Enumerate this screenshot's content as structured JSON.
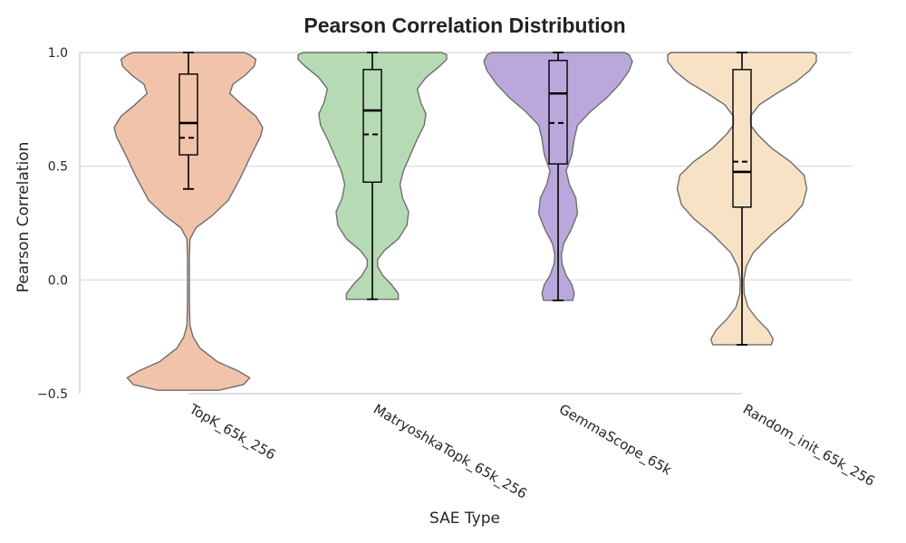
{
  "chart_data": {
    "type": "violin",
    "title": "Pearson Correlation Distribution",
    "xlabel": "SAE Type",
    "ylabel": "Pearson Correlation",
    "ylim": [
      -0.5,
      1.0
    ],
    "yticks": [
      {
        "value": -0.5,
        "label": "−0.5"
      },
      {
        "value": 0.0,
        "label": "0.0"
      },
      {
        "value": 0.5,
        "label": "0.5"
      },
      {
        "value": 1.0,
        "label": "1.0"
      }
    ],
    "grid": true,
    "categories": [
      "TopK_65k_256",
      "MatryoshkaTopk_65k_256",
      "GemmaScope_65k",
      "Random_init_65k_256"
    ],
    "series": [
      {
        "name": "TopK_65k_256",
        "color": "#f2c3ab",
        "box": {
          "whisker_low": 0.4,
          "q1": 0.55,
          "median": 0.69,
          "mean": 0.625,
          "q3": 0.905,
          "whisker_high": 1.0
        },
        "range": [
          -0.485,
          1.0
        ],
        "density": [
          [
            -0.485,
            0.4
          ],
          [
            -0.46,
            0.72
          ],
          [
            -0.43,
            0.8
          ],
          [
            -0.4,
            0.65
          ],
          [
            -0.36,
            0.38
          ],
          [
            -0.3,
            0.15
          ],
          [
            -0.25,
            0.06
          ],
          [
            -0.2,
            0.02
          ],
          [
            -0.1,
            0.012
          ],
          [
            0.0,
            0.012
          ],
          [
            0.1,
            0.012
          ],
          [
            0.18,
            0.02
          ],
          [
            0.23,
            0.1
          ],
          [
            0.28,
            0.3
          ],
          [
            0.35,
            0.52
          ],
          [
            0.45,
            0.68
          ],
          [
            0.55,
            0.82
          ],
          [
            0.63,
            0.94
          ],
          [
            0.67,
            0.97
          ],
          [
            0.72,
            0.88
          ],
          [
            0.77,
            0.7
          ],
          [
            0.82,
            0.54
          ],
          [
            0.86,
            0.58
          ],
          [
            0.9,
            0.74
          ],
          [
            0.94,
            0.86
          ],
          [
            0.97,
            0.88
          ],
          [
            0.99,
            0.8
          ],
          [
            1.0,
            0.72
          ]
        ]
      },
      {
        "name": "MatryoshkaTopk_65k_256",
        "color": "#b6dbb4",
        "box": {
          "whisker_low": -0.085,
          "q1": 0.43,
          "median": 0.745,
          "mean": 0.64,
          "q3": 0.925,
          "whisker_high": 1.0
        },
        "range": [
          -0.085,
          1.0
        ],
        "density": [
          [
            -0.085,
            0.3
          ],
          [
            -0.06,
            0.3
          ],
          [
            -0.02,
            0.22
          ],
          [
            0.02,
            0.12
          ],
          [
            0.06,
            0.06
          ],
          [
            0.09,
            0.06
          ],
          [
            0.13,
            0.14
          ],
          [
            0.18,
            0.3
          ],
          [
            0.24,
            0.4
          ],
          [
            0.3,
            0.42
          ],
          [
            0.36,
            0.35
          ],
          [
            0.42,
            0.32
          ],
          [
            0.48,
            0.36
          ],
          [
            0.55,
            0.44
          ],
          [
            0.62,
            0.52
          ],
          [
            0.68,
            0.6
          ],
          [
            0.73,
            0.62
          ],
          [
            0.78,
            0.56
          ],
          [
            0.84,
            0.52
          ],
          [
            0.89,
            0.62
          ],
          [
            0.94,
            0.78
          ],
          [
            0.97,
            0.86
          ],
          [
            0.99,
            0.86
          ],
          [
            1.0,
            0.8
          ]
        ]
      },
      {
        "name": "GemmaScope_65k",
        "color": "#baa8dc",
        "box": {
          "whisker_low": -0.09,
          "q1": 0.51,
          "median": 0.82,
          "mean": 0.69,
          "q3": 0.965,
          "whisker_high": 1.0
        },
        "range": [
          -0.09,
          1.0
        ],
        "density": [
          [
            -0.09,
            0.18
          ],
          [
            -0.06,
            0.2
          ],
          [
            -0.02,
            0.17
          ],
          [
            0.02,
            0.1
          ],
          [
            0.07,
            0.05
          ],
          [
            0.11,
            0.04
          ],
          [
            0.16,
            0.07
          ],
          [
            0.22,
            0.16
          ],
          [
            0.29,
            0.24
          ],
          [
            0.36,
            0.22
          ],
          [
            0.42,
            0.14
          ],
          [
            0.48,
            0.1
          ],
          [
            0.55,
            0.17
          ],
          [
            0.62,
            0.2
          ],
          [
            0.68,
            0.24
          ],
          [
            0.74,
            0.4
          ],
          [
            0.8,
            0.6
          ],
          [
            0.86,
            0.76
          ],
          [
            0.92,
            0.88
          ],
          [
            0.96,
            0.92
          ],
          [
            0.99,
            0.88
          ],
          [
            1.0,
            0.82
          ]
        ]
      },
      {
        "name": "Random_init_65k_256",
        "color": "#f8e2c6",
        "box": {
          "whisker_low": -0.285,
          "q1": 0.32,
          "median": 0.475,
          "mean": 0.52,
          "q3": 0.925,
          "whisker_high": 1.0
        },
        "range": [
          -0.285,
          1.0
        ],
        "density": [
          [
            -0.285,
            0.34
          ],
          [
            -0.26,
            0.36
          ],
          [
            -0.22,
            0.3
          ],
          [
            -0.17,
            0.17
          ],
          [
            -0.12,
            0.07
          ],
          [
            -0.06,
            0.025
          ],
          [
            0.0,
            0.02
          ],
          [
            0.06,
            0.05
          ],
          [
            0.12,
            0.13
          ],
          [
            0.2,
            0.34
          ],
          [
            0.27,
            0.56
          ],
          [
            0.33,
            0.7
          ],
          [
            0.4,
            0.75
          ],
          [
            0.46,
            0.72
          ],
          [
            0.52,
            0.56
          ],
          [
            0.58,
            0.34
          ],
          [
            0.64,
            0.18
          ],
          [
            0.68,
            0.1
          ],
          [
            0.72,
            0.1
          ],
          [
            0.77,
            0.2
          ],
          [
            0.82,
            0.4
          ],
          [
            0.87,
            0.62
          ],
          [
            0.92,
            0.78
          ],
          [
            0.96,
            0.86
          ],
          [
            0.99,
            0.86
          ],
          [
            1.0,
            0.82
          ]
        ]
      }
    ]
  }
}
